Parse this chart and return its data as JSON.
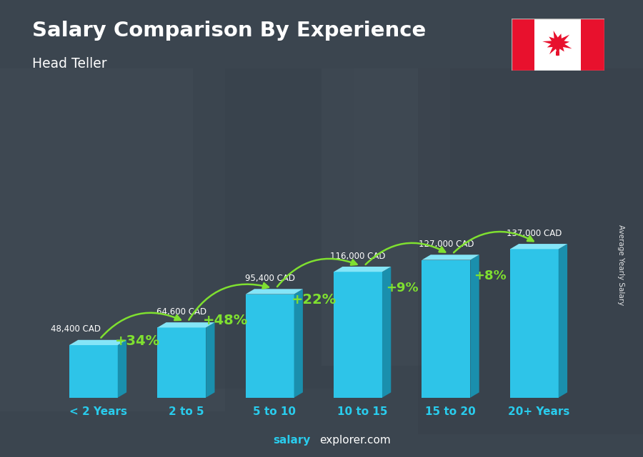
{
  "title": "Salary Comparison By Experience",
  "subtitle": "Head Teller",
  "categories": [
    "< 2 Years",
    "2 to 5",
    "5 to 10",
    "10 to 15",
    "15 to 20",
    "20+ Years"
  ],
  "values": [
    48400,
    64600,
    95400,
    116000,
    127000,
    137000
  ],
  "labels": [
    "48,400 CAD",
    "64,600 CAD",
    "95,400 CAD",
    "116,000 CAD",
    "127,000 CAD",
    "137,000 CAD"
  ],
  "pct_labels": [
    "+34%",
    "+48%",
    "+22%",
    "+9%",
    "+8%"
  ],
  "bar_color_face": "#2EC4E8",
  "bar_color_dark": "#1A8FAD",
  "bar_color_top": "#85E5F7",
  "title_color": "#FFFFFF",
  "subtitle_color": "#FFFFFF",
  "label_color": "#FFFFFF",
  "pct_color": "#7FE030",
  "xlabel_color": "#29CCED",
  "watermark_salary": "salary",
  "watermark_rest": "explorer.com",
  "ylabel_text": "Average Yearly Salary",
  "ylabel_color": "#FFFFFF",
  "bg_color": "#5a6a7a",
  "overlay_alpha": 0.45
}
